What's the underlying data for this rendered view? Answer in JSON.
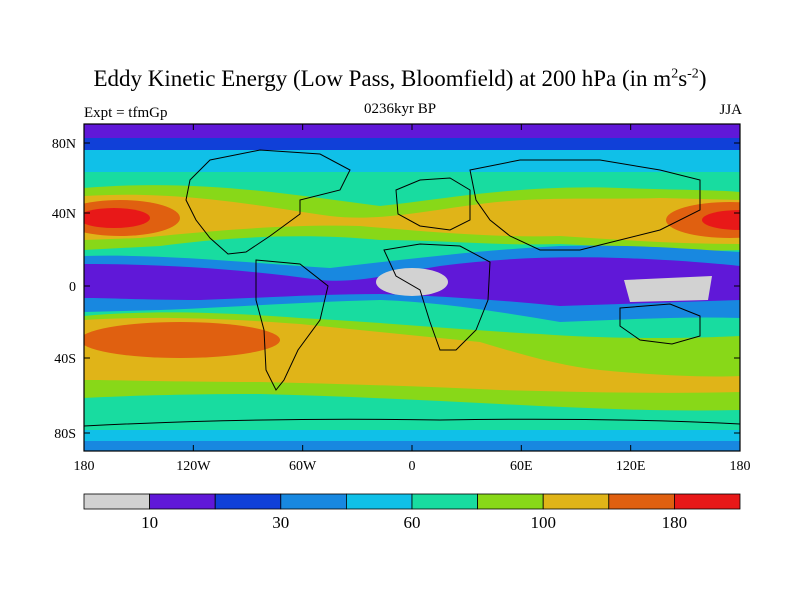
{
  "title": {
    "main": "Eddy Kinetic Energy (Low Pass, Bloomfield) at 200 hPa (in m",
    "sup1": "2",
    "mid": "s",
    "sup2": "-2",
    "end": ")"
  },
  "subtitle": "0236kyr BP",
  "left_label": "Expt = tfmGp",
  "right_label": "JJA",
  "axes": {
    "x_ticks": [
      "180",
      "120W",
      "60W",
      "0",
      "60E",
      "120E",
      "180"
    ],
    "y_ticks": [
      "80N",
      "40N",
      "0",
      "40S",
      "80S"
    ]
  },
  "colorbar": {
    "colors": [
      "#d2d2d2",
      "#6018d8",
      "#1040d8",
      "#1888e0",
      "#10c0e8",
      "#18dca0",
      "#88d818",
      "#e0b418",
      "#e06010",
      "#e81818"
    ],
    "labels": [
      "10",
      "30",
      "60",
      "100",
      "180"
    ]
  },
  "colors": {
    "background_band": "#18dca0",
    "polar_band": "#6018d8",
    "max_core": "#e81818"
  }
}
